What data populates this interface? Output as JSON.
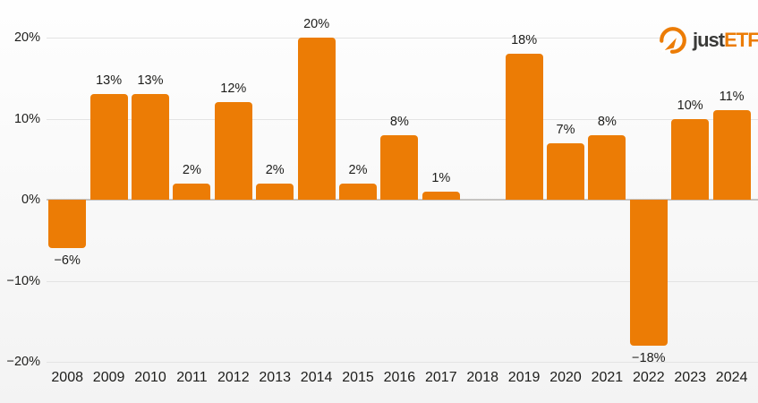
{
  "brand": {
    "name": "justETF",
    "logo_icon": "gauge-arrow-icon",
    "text_just": "just",
    "text_etf": "ETF"
  },
  "colors": {
    "bar": "#EC7C05",
    "accent": "#EC7C05",
    "text": "#1D1D1B",
    "gridline": "#E3E3E3",
    "zero_line": "#C6C4C2",
    "logo_dark": "#3A3A38",
    "background_top": "#FEFEFE",
    "background_bottom": "#F3F3F3"
  },
  "chart_data": {
    "type": "bar",
    "title": "",
    "xlabel": "",
    "ylabel": "",
    "unit": "%",
    "grid": true,
    "legend": false,
    "categories": [
      "2008",
      "2009",
      "2010",
      "2011",
      "2012",
      "2013",
      "2014",
      "2015",
      "2016",
      "2017",
      "2018",
      "2019",
      "2020",
      "2021",
      "2022",
      "2023",
      "2024"
    ],
    "values": [
      -6,
      13,
      13,
      2,
      12,
      2,
      20,
      2,
      8,
      1,
      0,
      18,
      7,
      8,
      -18,
      10,
      11
    ],
    "bar_labels": [
      "−6%",
      "13%",
      "13%",
      "2%",
      "12%",
      "2%",
      "20%",
      "2%",
      "8%",
      "1%",
      "",
      "18%",
      "7%",
      "8%",
      "−18%",
      "10%",
      "11%"
    ],
    "ylim": [
      -20,
      20
    ],
    "yticks": [
      20,
      10,
      0,
      -10,
      -20
    ],
    "ytick_labels": [
      "20%",
      "10%",
      "0%",
      "−10%",
      "−20%"
    ]
  }
}
